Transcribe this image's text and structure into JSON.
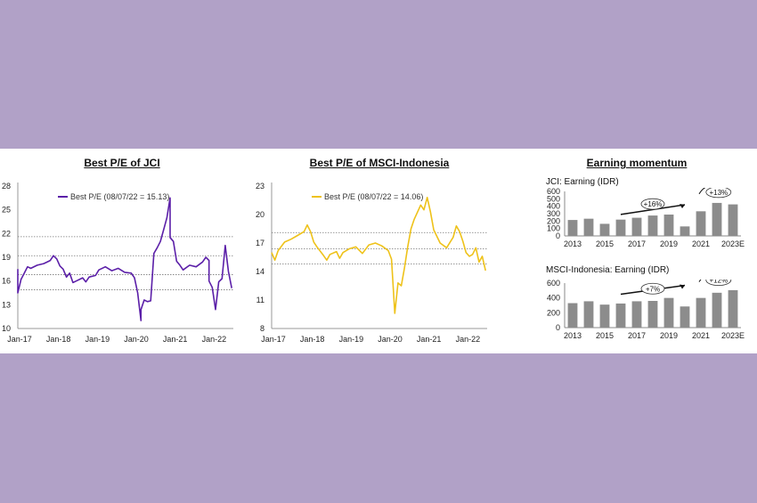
{
  "colors": {
    "background": "#b1a1c7",
    "jci_line": "#5b1fa8",
    "msci_line": "#eec21a",
    "bar": "#8c8c8c"
  },
  "chart_data": [
    {
      "type": "line",
      "title": "Best P/E of JCI",
      "legend": "Best P/E (08/07/22 = 15.13)",
      "legend_placement": "top-left",
      "x_ticks": [
        "Jan-17",
        "Jan-18",
        "Jan-19",
        "Jan-20",
        "Jan-21",
        "Jan-22"
      ],
      "y_ticks": [
        10,
        13,
        16,
        19,
        22,
        25,
        28
      ],
      "ylim": [
        10,
        28
      ],
      "reference_lines": [
        21.6,
        19.2,
        16.8,
        14.9
      ],
      "series": [
        {
          "name": "Best P/E (08/07/22 = 15.13)",
          "x": [
            "2017-01",
            "2017-01",
            "2017-02",
            "2017-03",
            "2017-04",
            "2017-05",
            "2017-07",
            "2017-09",
            "2017-11",
            "2017-12",
            "2018-01",
            "2018-02",
            "2018-03",
            "2018-04",
            "2018-05",
            "2018-06",
            "2018-07",
            "2018-09",
            "2018-10",
            "2018-11",
            "2019-01",
            "2019-02",
            "2019-04",
            "2019-06",
            "2019-08",
            "2019-10",
            "2019-12",
            "2020-01",
            "2020-02",
            "2020-03",
            "2020-03",
            "2020-04",
            "2020-05",
            "2020-06",
            "2020-07",
            "2020-08",
            "2020-09",
            "2020-10",
            "2020-11",
            "2020-12",
            "2020-12",
            "2021-01",
            "2021-02",
            "2021-03",
            "2021-04",
            "2021-06",
            "2021-08",
            "2021-10",
            "2021-11",
            "2021-12",
            "2021-12",
            "2022-01",
            "2022-02",
            "2022-03",
            "2022-04",
            "2022-05",
            "2022-06",
            "2022-07"
          ],
          "values": [
            17.5,
            14.5,
            16.2,
            17.0,
            17.8,
            17.6,
            18.0,
            18.2,
            18.6,
            19.2,
            18.8,
            17.9,
            17.5,
            16.5,
            17.0,
            15.8,
            16.0,
            16.4,
            15.9,
            16.5,
            16.7,
            17.4,
            17.8,
            17.3,
            17.6,
            17.1,
            17.0,
            16.4,
            14.5,
            11.0,
            12.4,
            13.6,
            13.4,
            13.5,
            19.5,
            20.2,
            21.0,
            22.5,
            24.0,
            26.5,
            21.5,
            21.0,
            18.5,
            18.0,
            17.4,
            18.0,
            17.8,
            18.4,
            19.0,
            18.6,
            16.0,
            15.2,
            12.4,
            15.9,
            16.3,
            20.5,
            17.2,
            15.1
          ]
        }
      ]
    },
    {
      "type": "line",
      "title": "Best P/E of MSCI-Indonesia",
      "legend": "Best P/E (08/07/22 = 14.06)",
      "legend_placement": "top-left",
      "x_ticks": [
        "Jan-17",
        "Jan-18",
        "Jan-19",
        "Jan-20",
        "Jan-21",
        "Jan-22"
      ],
      "y_ticks": [
        8,
        11,
        14,
        17,
        20,
        23
      ],
      "ylim": [
        8,
        23
      ],
      "reference_lines": [
        18.1,
        16.4,
        14.8
      ],
      "series": [
        {
          "name": "Best P/E (08/07/22 = 14.06)",
          "x": [
            "2017-01",
            "2017-02",
            "2017-03",
            "2017-05",
            "2017-07",
            "2017-09",
            "2017-11",
            "2017-12",
            "2018-01",
            "2018-02",
            "2018-03",
            "2018-05",
            "2018-06",
            "2018-07",
            "2018-09",
            "2018-10",
            "2018-11",
            "2019-01",
            "2019-03",
            "2019-05",
            "2019-07",
            "2019-09",
            "2019-11",
            "2020-01",
            "2020-02",
            "2020-03",
            "2020-04",
            "2020-05",
            "2020-06",
            "2020-07",
            "2020-08",
            "2020-09",
            "2020-11",
            "2020-12",
            "2021-01",
            "2021-02",
            "2021-03",
            "2021-05",
            "2021-07",
            "2021-09",
            "2021-10",
            "2021-11",
            "2021-12",
            "2022-01",
            "2022-02",
            "2022-03",
            "2022-04",
            "2022-05",
            "2022-06",
            "2022-07"
          ],
          "values": [
            16.0,
            15.2,
            16.2,
            17.1,
            17.4,
            17.8,
            18.2,
            18.9,
            18.2,
            17.1,
            16.6,
            15.7,
            15.2,
            15.8,
            16.1,
            15.4,
            16.0,
            16.4,
            16.6,
            15.9,
            16.8,
            17.0,
            16.7,
            16.2,
            15.3,
            9.6,
            12.8,
            12.5,
            14.4,
            16.6,
            18.5,
            19.5,
            21.0,
            20.5,
            21.8,
            20.3,
            18.4,
            17.0,
            16.5,
            17.6,
            18.8,
            18.2,
            17.2,
            16.0,
            15.6,
            15.8,
            16.5,
            15.0,
            15.6,
            14.1
          ]
        }
      ]
    },
    {
      "type": "bar",
      "title": "Earning momentum",
      "subtitle": "JCI: Earning (IDR)",
      "categories": [
        "2013",
        "2014",
        "2015",
        "2016",
        "2017",
        "2018",
        "2019",
        "2020",
        "2021",
        "2022",
        "2023E"
      ],
      "x_tick_labels": [
        "2013",
        "2015",
        "2017",
        "2019",
        "2021",
        "2023E"
      ],
      "y_ticks": [
        0,
        100,
        200,
        300,
        400,
        500,
        600
      ],
      "ylim": [
        0,
        600
      ],
      "values": [
        215,
        232,
        163,
        220,
        245,
        275,
        288,
        128,
        332,
        445,
        425
      ],
      "annotations": [
        "+16%",
        "+13%"
      ]
    },
    {
      "type": "bar",
      "subtitle": "MSCI-Indonesia: Earning (IDR)",
      "categories": [
        "2013",
        "2014",
        "2015",
        "2016",
        "2017",
        "2018",
        "2019",
        "2020",
        "2021",
        "2022",
        "2023E"
      ],
      "x_tick_labels": [
        "2013",
        "2015",
        "2017",
        "2019",
        "2021",
        "2023E"
      ],
      "y_ticks": [
        0,
        200,
        400,
        600
      ],
      "ylim": [
        0,
        600
      ],
      "values": [
        330,
        355,
        310,
        325,
        355,
        360,
        400,
        285,
        400,
        470,
        505
      ],
      "annotations": [
        "+7%",
        "+12%"
      ]
    }
  ]
}
